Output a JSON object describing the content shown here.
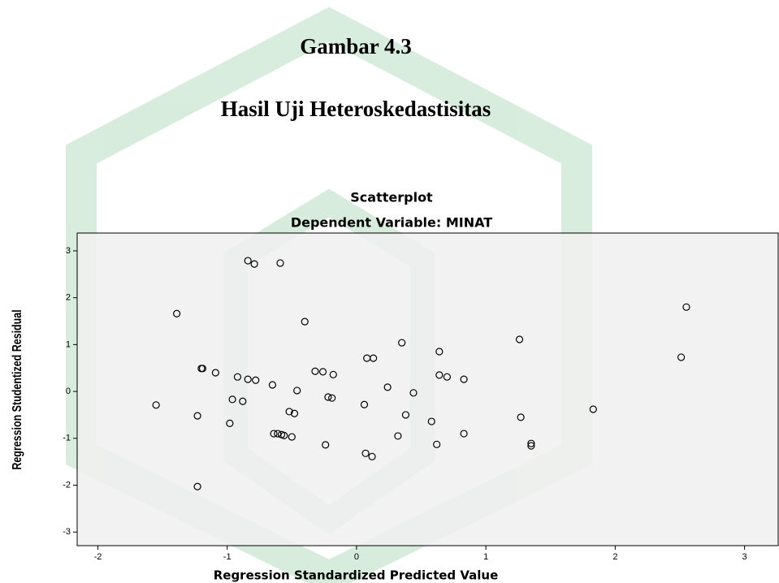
{
  "header": {
    "figure": "Gambar 4.3",
    "caption": "Hasil Uji Heteroskedastisitas"
  },
  "chart_data": {
    "type": "scatter",
    "title": "Scatterplot",
    "subtitle": "Dependent Variable: MINAT",
    "x_label": "Regression Standardized Predicted Value",
    "y_label": "Regression Studentized Residual",
    "xlim": [
      -2.16,
      3.26
    ],
    "ylim": [
      -3.29,
      3.38
    ],
    "xticks": [
      -2,
      -1,
      0,
      1,
      2,
      3
    ],
    "yticks": [
      -3,
      -2,
      -1,
      0,
      1,
      2,
      3
    ],
    "color": "#000000",
    "x": [
      -0.84,
      -0.79,
      -0.59,
      -1.39,
      -0.4,
      2.55,
      0.35,
      1.26,
      0.64,
      0.08,
      0.13,
      2.51,
      -1.2,
      -1.19,
      -1.09,
      -0.92,
      -0.84,
      -0.78,
      -0.65,
      -0.32,
      -0.26,
      -0.18,
      0.64,
      0.7,
      0.83,
      0.24,
      -0.46,
      0.44,
      -1.55,
      -0.96,
      -0.88,
      -0.22,
      -0.19,
      0.06,
      -1.23,
      -0.52,
      -0.48,
      0.38,
      -0.98,
      0.58,
      1.27,
      1.83,
      -0.64,
      -0.61,
      -0.58,
      -0.56,
      -0.5,
      -0.24,
      0.32,
      0.83,
      1.35,
      1.35,
      0.62,
      0.07,
      0.12,
      -1.23
    ],
    "values": [
      2.79,
      2.72,
      2.74,
      1.66,
      1.49,
      1.8,
      1.04,
      1.11,
      0.85,
      0.71,
      0.71,
      0.73,
      0.49,
      0.49,
      0.4,
      0.31,
      0.26,
      0.24,
      0.14,
      0.43,
      0.42,
      0.36,
      0.35,
      0.31,
      0.26,
      0.09,
      0.02,
      -0.03,
      -0.29,
      -0.17,
      -0.21,
      -0.12,
      -0.14,
      -0.28,
      -0.52,
      -0.43,
      -0.47,
      -0.5,
      -0.68,
      -0.64,
      -0.55,
      -0.38,
      -0.9,
      -0.9,
      -0.92,
      -0.94,
      -0.97,
      -1.14,
      -0.95,
      -0.9,
      -1.11,
      -1.16,
      -1.13,
      -1.32,
      -1.39,
      -2.03
    ]
  }
}
